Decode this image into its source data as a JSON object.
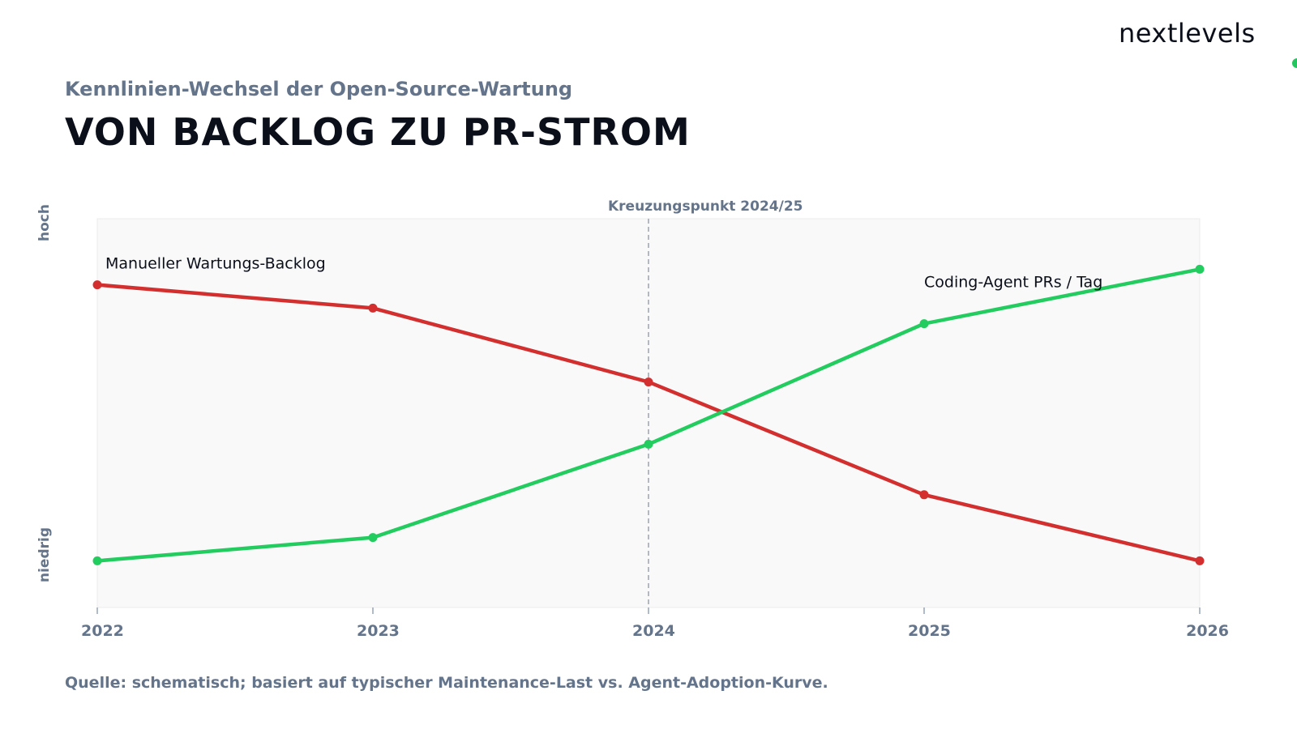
{
  "brand": {
    "name": "nextlevels",
    "dot_color": "#22c55e"
  },
  "subtitle": "Kennlinien-Wechsel der Open-Source-Wartung",
  "title": "VON BACKLOG ZU PR-STROM",
  "source": "Quelle: schematisch; basiert auf typischer Maintenance-Last vs. Agent-Adoption-Kurve.",
  "chart_data": {
    "type": "line",
    "x": [
      2022,
      2023,
      2024,
      2025,
      2026
    ],
    "xlim": [
      2022,
      2026
    ],
    "ylim": [
      0,
      10
    ],
    "y_high_label": "hoch",
    "y_low_label": "niedrig",
    "grid": false,
    "annotations": [
      {
        "label": "Kreuzungspunkt 2024/25",
        "x": 2024,
        "style": "dashed-vertical"
      }
    ],
    "series": [
      {
        "name": "Manueller Wartungs-Backlog",
        "color": "#d32f2f",
        "values": [
          8.3,
          7.7,
          5.8,
          2.9,
          1.2
        ],
        "label_anchor": "start"
      },
      {
        "name": "Coding-Agent PRs / Tag",
        "color": "#22cc5e",
        "values": [
          1.2,
          1.8,
          4.2,
          7.3,
          8.7
        ],
        "label_anchor": "end"
      }
    ]
  }
}
